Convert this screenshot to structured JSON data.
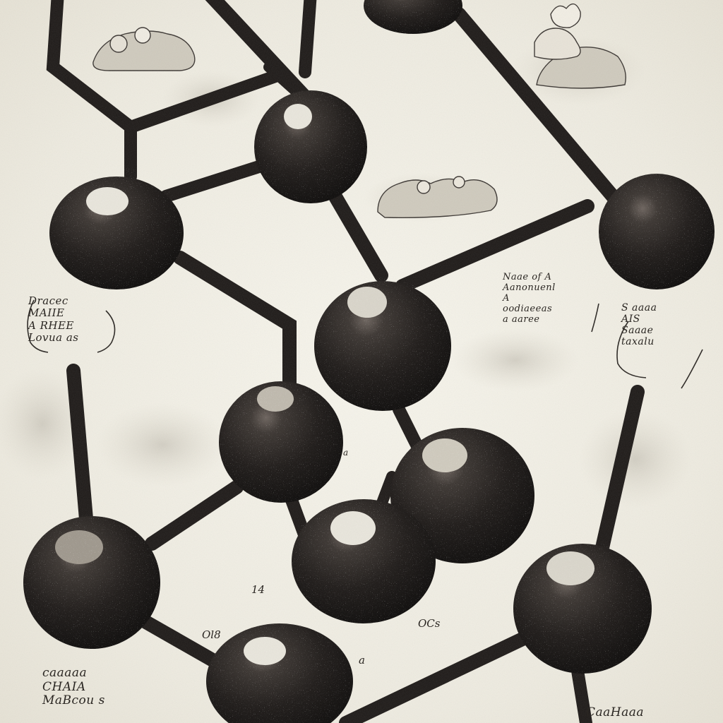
{
  "illustration": {
    "subject": "ball-and-stick molecular model engraving",
    "palette": {
      "paper": "#f4f1e8",
      "ink": "#1c1917",
      "atom_dark": "#171311",
      "highlight": "#e9e6dc"
    },
    "annotations": {
      "left_note": "Dracec\nMAIIE\nA RHEE\nLovua as",
      "middle_note": "Naae of A\nAanonuenl\nA\noodiaeeas\na aaree",
      "right_note": "S aaaa\nAIS\nSaaae\ntaxalu",
      "bottom_left_note": "caaaaa\nCHAIA\nMaBcou s",
      "bottom_right_note": "CaaHaaa"
    },
    "marks": {
      "m1": "14",
      "m2": "Ol8",
      "m3": "OCs",
      "m4": "a",
      "m5": "a"
    }
  }
}
